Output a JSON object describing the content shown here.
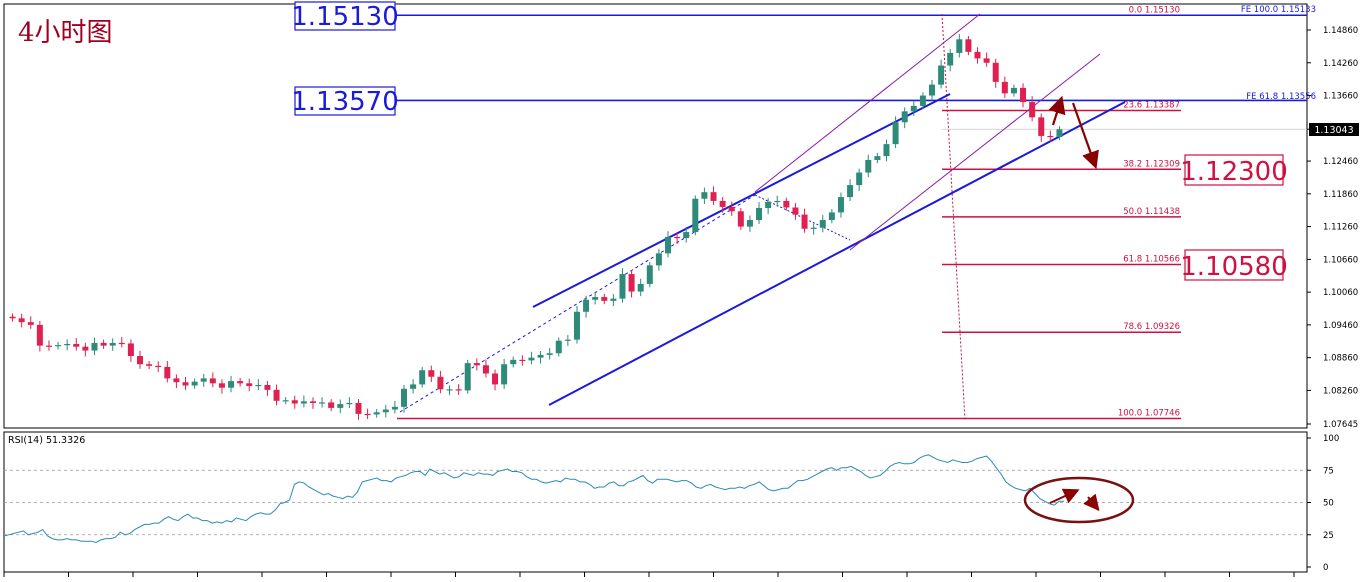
{
  "chart_data": [
    {
      "type": "candlestick",
      "title": "4小时图",
      "yticks": [
        "1.14860",
        "1.14260",
        "1.13660",
        "1.13043",
        "1.12460",
        "1.11860",
        "1.11260",
        "1.10660",
        "1.10060",
        "1.09460",
        "1.08860",
        "1.08260",
        "1.07645"
      ],
      "ylim": [
        1.07645,
        1.15433
      ],
      "current_price": 1.13043,
      "current_price_label": "1.13043",
      "big_levels": [
        {
          "value": 1.1513,
          "label": "1.15130"
        },
        {
          "value": 1.1357,
          "label": "1.13570"
        }
      ],
      "targets": [
        {
          "value": 1.123,
          "label": "1.12300"
        },
        {
          "value": 1.1058,
          "label": "1.10580"
        }
      ],
      "fibonacci": [
        {
          "value": 1.1513,
          "label": "0.0  1.15130"
        },
        {
          "value": 1.13387,
          "label": "23.6  1.13387"
        },
        {
          "value": 1.12309,
          "label": "38.2  1.12309"
        },
        {
          "value": 1.11438,
          "label": "50.0  1.11438"
        },
        {
          "value": 1.10566,
          "label": "61.8  1.10566"
        },
        {
          "value": 1.09326,
          "label": "78.6  1.09326"
        },
        {
          "value": 1.07746,
          "label": "100.0  1.07746"
        }
      ],
      "fibo_expansion": [
        {
          "value": 1.15133,
          "label": "FE 100.0  1.15133"
        },
        {
          "value": 1.13556,
          "label": "FE 61.8  1.13556"
        }
      ],
      "closes": [
        1.0958,
        1.0951,
        1.0946,
        1.0908,
        1.0907,
        1.0909,
        1.0911,
        1.0906,
        1.0899,
        1.0913,
        1.0908,
        1.0913,
        1.0912,
        1.0889,
        1.0874,
        1.0871,
        1.0869,
        1.0848,
        1.0841,
        1.0835,
        1.0842,
        1.0848,
        1.0839,
        1.0831,
        1.0843,
        1.0839,
        1.0834,
        1.0836,
        1.0827,
        1.0807,
        1.0808,
        1.0802,
        1.0806,
        1.0803,
        1.0804,
        1.0794,
        1.0801,
        1.0803,
        1.0783,
        1.0782,
        1.0786,
        1.0791,
        1.0796,
        1.0829,
        1.0837,
        1.0863,
        1.0851,
        1.0828,
        1.0828,
        1.0826,
        1.0876,
        1.0872,
        1.0857,
        1.0837,
        1.0874,
        1.0882,
        1.0881,
        1.0886,
        1.0891,
        1.0894,
        1.0917,
        1.0919,
        1.097,
        1.0992,
        1.0997,
        1.099,
        1.0994,
        1.1039,
        1.1007,
        1.1021,
        1.1055,
        1.1077,
        1.1107,
        1.1105,
        1.1116,
        1.1177,
        1.1189,
        1.1173,
        1.1162,
        1.1154,
        1.1126,
        1.1138,
        1.116,
        1.1171,
        1.1173,
        1.1161,
        1.1148,
        1.1122,
        1.1124,
        1.1138,
        1.1152,
        1.118,
        1.1202,
        1.1225,
        1.1248,
        1.1255,
        1.1277,
        1.1317,
        1.1337,
        1.1347,
        1.1366,
        1.1386,
        1.1421,
        1.1444,
        1.1469,
        1.1446,
        1.1434,
        1.1426,
        1.1391,
        1.137,
        1.138,
        1.1354,
        1.1326,
        1.1292,
        1.129,
        1.1304
      ],
      "rsi": {
        "label": "RSI(14) 51.3326",
        "yticks": [
          "100",
          "75",
          "50",
          "25",
          "0"
        ],
        "levels": [
          75,
          50,
          25
        ],
        "values": [
          24,
          25,
          26,
          27,
          28,
          25,
          26,
          27,
          29,
          24,
          22,
          21,
          21,
          22,
          21,
          21,
          20,
          20,
          20,
          19,
          21,
          22,
          22,
          23,
          27,
          25,
          26,
          29,
          31,
          33,
          33,
          34,
          34,
          37,
          39,
          37,
          36,
          39,
          41,
          38,
          38,
          36,
          36,
          34,
          35,
          34,
          36,
          35,
          38,
          37,
          36,
          39,
          41,
          42,
          41,
          41,
          44,
          49,
          50,
          52,
          64,
          66,
          65,
          62,
          60,
          58,
          56,
          57,
          55,
          54,
          53,
          55,
          54,
          58,
          66,
          67,
          68,
          69,
          67,
          67,
          66,
          69,
          70,
          71,
          73,
          74,
          74,
          71,
          76,
          74,
          72,
          73,
          71,
          69,
          70,
          73,
          72,
          71,
          73,
          72,
          72,
          71,
          74,
          75,
          76,
          74,
          74,
          73,
          70,
          68,
          68,
          66,
          65,
          66,
          67,
          66,
          69,
          68,
          68,
          66,
          66,
          64,
          61,
          62,
          62,
          65,
          66,
          63,
          63,
          66,
          67,
          69,
          71,
          67,
          65,
          68,
          68,
          68,
          67,
          66,
          67,
          67,
          65,
          62,
          61,
          63,
          64,
          62,
          61,
          60,
          61,
          61,
          62,
          61,
          63,
          64,
          66,
          63,
          60,
          59,
          60,
          61,
          61,
          64,
          67,
          67,
          68,
          70,
          72,
          74,
          76,
          77,
          75,
          77,
          77,
          78,
          76,
          74,
          71,
          69,
          70,
          71,
          74,
          78,
          80,
          81,
          80,
          80,
          81,
          84,
          86,
          87,
          85,
          83,
          82,
          81,
          83,
          82,
          81,
          81,
          82,
          84,
          85,
          86,
          82,
          77,
          72,
          66,
          63,
          61,
          60,
          59,
          61,
          57,
          53,
          51,
          49,
          48,
          51,
          51
        ]
      },
      "annotations": [
        "up-down arrow forecast on price",
        "up-down arrow forecast on RSI circled"
      ],
      "colors": {
        "bull": "#2e8b7a",
        "bear": "#e02050",
        "channel": "#1a1adc",
        "fib": "#d01040",
        "rsi_line": "#2a8ab5",
        "arrow": "#8b0000"
      }
    }
  ]
}
